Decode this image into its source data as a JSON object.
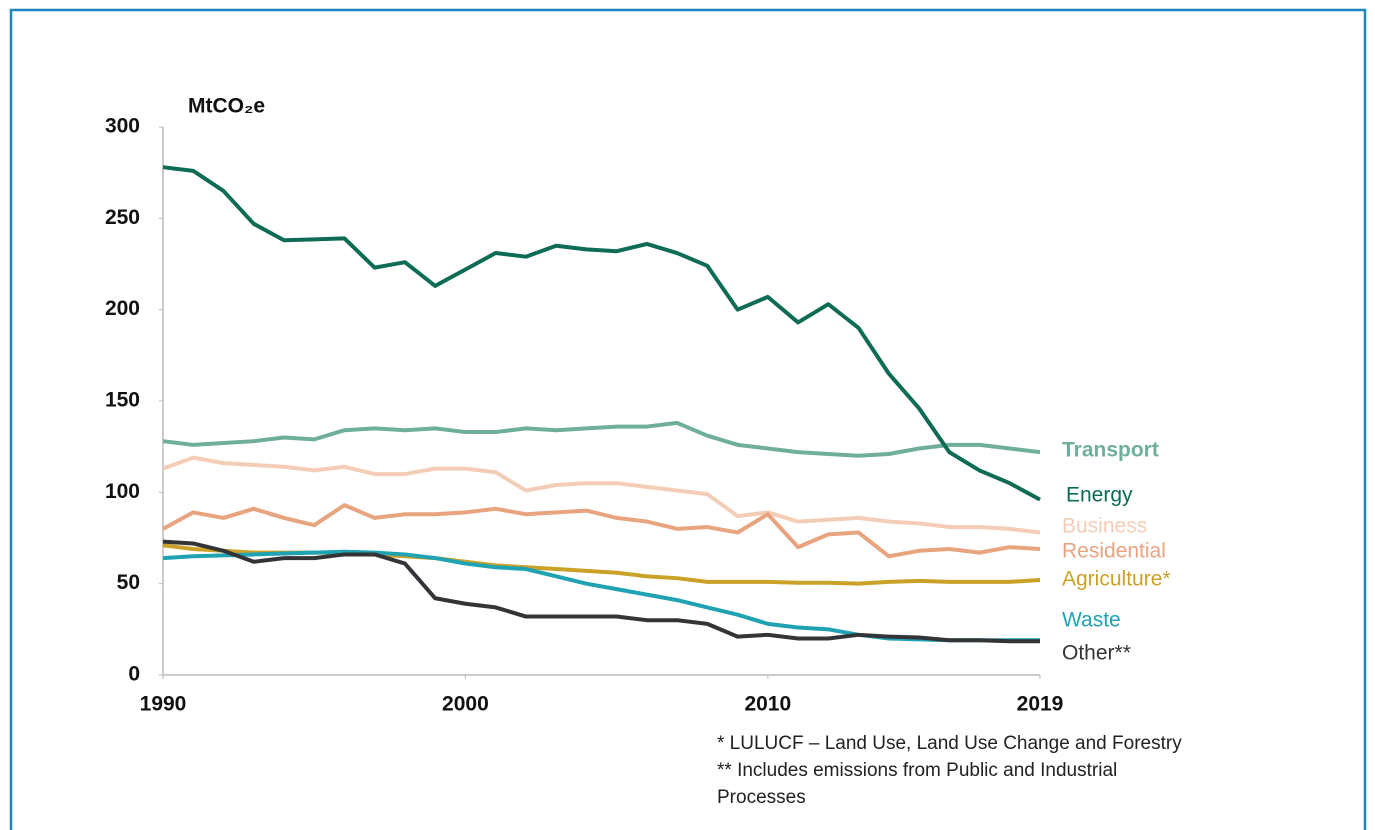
{
  "chart_data": {
    "type": "line",
    "y_label": "MtCO₂e",
    "x": [
      1990,
      1991,
      1992,
      1993,
      1994,
      1995,
      1996,
      1997,
      1998,
      1999,
      2000,
      2001,
      2002,
      2003,
      2004,
      2005,
      2006,
      2007,
      2008,
      2009,
      2010,
      2011,
      2012,
      2013,
      2014,
      2015,
      2016,
      2017,
      2018,
      2019
    ],
    "xlim": [
      1990,
      2019
    ],
    "xticks": [
      1990,
      2000,
      2010,
      2019
    ],
    "ylim": [
      0,
      300
    ],
    "yticks": [
      0,
      50,
      100,
      150,
      200,
      250,
      300
    ],
    "series": [
      {
        "name": "Transport",
        "color": "#6fae9b",
        "values": [
          128,
          126,
          127,
          128,
          130,
          129,
          134,
          135,
          134,
          135,
          133,
          133,
          135,
          134,
          135,
          136,
          136,
          138,
          131,
          126,
          124,
          122,
          121,
          120,
          121,
          124,
          126,
          126,
          124,
          122
        ]
      },
      {
        "name": "Energy",
        "color": "#0e6b55",
        "values": [
          278,
          276,
          265,
          247,
          238,
          238.5,
          239,
          223,
          226,
          213,
          222,
          231,
          229,
          235,
          233,
          232,
          236,
          231,
          224,
          200,
          207,
          193,
          203,
          190,
          165,
          146,
          122,
          112,
          105,
          96
        ]
      },
      {
        "name": "Business",
        "color": "#f4cdb6",
        "values": [
          113,
          119,
          116,
          115,
          114,
          112,
          114,
          110,
          110,
          113,
          113,
          111,
          101,
          104,
          105,
          105,
          103,
          101,
          99,
          87,
          89,
          84,
          85,
          86,
          84,
          83,
          81,
          81,
          80,
          78
        ]
      },
      {
        "name": "Residential",
        "color": "#e8a37f",
        "values": [
          80,
          89,
          86,
          91,
          86,
          82,
          93,
          86,
          88,
          88,
          89,
          91,
          88,
          89,
          90,
          86,
          84,
          80,
          81,
          78,
          88,
          70,
          77,
          78,
          65,
          68,
          69,
          67,
          70,
          69
        ]
      },
      {
        "name": "Agriculture*",
        "color": "#c9a227",
        "values": [
          71,
          69,
          68,
          67,
          67,
          67,
          67,
          66,
          65,
          64,
          62,
          60,
          59,
          58,
          57,
          56,
          54,
          53,
          51,
          51,
          51,
          50.5,
          50.5,
          50,
          51,
          51.5,
          51,
          51,
          51,
          52
        ]
      },
      {
        "name": "Waste",
        "color": "#1fa3b3",
        "values": [
          64,
          65,
          65.5,
          66,
          66.5,
          67,
          67.5,
          67,
          66,
          64,
          61,
          59,
          58,
          54,
          50,
          47,
          44,
          41,
          37,
          33,
          28,
          26,
          25,
          22,
          20,
          19.5,
          19,
          19,
          19,
          19
        ]
      },
      {
        "name": "Other**",
        "color": "#333438",
        "values": [
          73,
          72,
          68,
          62,
          64,
          64,
          66,
          66,
          61,
          42,
          39,
          37,
          32,
          32,
          32,
          32,
          30,
          30,
          28,
          21,
          22,
          20,
          20,
          22,
          21,
          20.5,
          19,
          19,
          18.5,
          18.5
        ]
      }
    ],
    "footnotes": [
      "* LULUCF – Land Use, Land Use Change and Forestry",
      "** Includes emissions from Public and Industrial",
      "Processes"
    ]
  }
}
